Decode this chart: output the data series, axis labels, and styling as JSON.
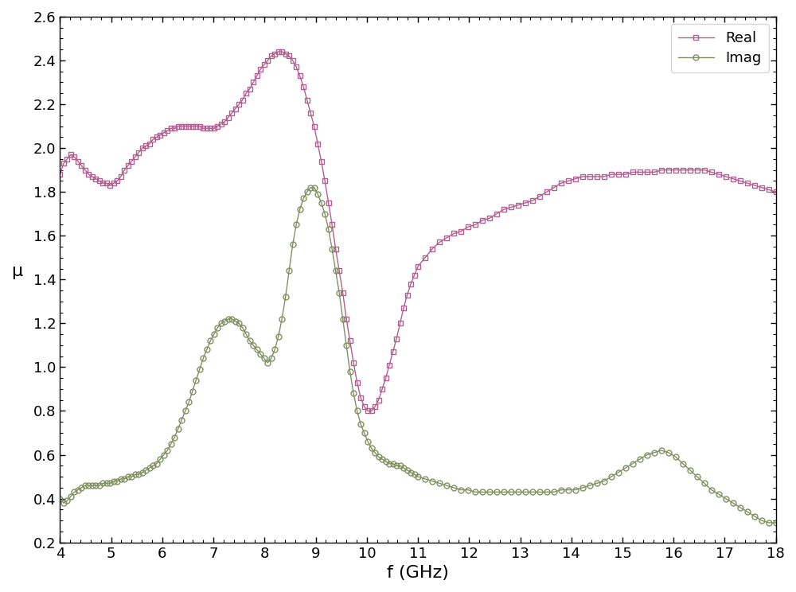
{
  "xlabel": "f (GHz)",
  "ylabel": "μ",
  "xlim": [
    4,
    18
  ],
  "ylim": [
    0.2,
    2.6
  ],
  "xticks": [
    4,
    5,
    6,
    7,
    8,
    9,
    10,
    11,
    12,
    13,
    14,
    15,
    16,
    17,
    18
  ],
  "yticks": [
    0.2,
    0.4,
    0.6,
    0.8,
    1.0,
    1.2,
    1.4,
    1.6,
    1.8,
    2.0,
    2.2,
    2.4,
    2.6
  ],
  "real_color": "#b06090",
  "imag_color": "#809060",
  "legend_labels": [
    "Real",
    "Imag"
  ],
  "marker_real": "s",
  "marker_imag": "o",
  "linewidth": 1.0,
  "markersize": 5,
  "xlabel_fontsize": 16,
  "ylabel_fontsize": 16,
  "tick_fontsize": 13,
  "legend_fontsize": 13,
  "real_x": [
    4.0,
    4.07,
    4.14,
    4.21,
    4.28,
    4.35,
    4.42,
    4.49,
    4.56,
    4.63,
    4.7,
    4.77,
    4.84,
    4.91,
    4.98,
    5.05,
    5.12,
    5.19,
    5.26,
    5.33,
    5.4,
    5.47,
    5.54,
    5.61,
    5.68,
    5.75,
    5.82,
    5.89,
    5.96,
    6.03,
    6.1,
    6.17,
    6.24,
    6.31,
    6.38,
    6.45,
    6.52,
    6.59,
    6.66,
    6.73,
    6.8,
    6.87,
    6.94,
    7.01,
    7.08,
    7.15,
    7.22,
    7.29,
    7.36,
    7.43,
    7.5,
    7.57,
    7.64,
    7.71,
    7.78,
    7.85,
    7.92,
    7.99,
    8.06,
    8.13,
    8.2,
    8.27,
    8.34,
    8.41,
    8.48,
    8.55,
    8.62,
    8.69,
    8.76,
    8.83,
    8.9,
    8.97,
    9.04,
    9.11,
    9.18,
    9.25,
    9.32,
    9.39,
    9.46,
    9.53,
    9.6,
    9.67,
    9.74,
    9.81,
    9.88,
    9.95,
    10.02,
    10.09,
    10.16,
    10.23,
    10.3,
    10.37,
    10.44,
    10.51,
    10.58,
    10.65,
    10.72,
    10.79,
    10.86,
    10.93,
    11.0,
    11.14,
    11.28,
    11.42,
    11.56,
    11.7,
    11.84,
    11.98,
    12.12,
    12.26,
    12.4,
    12.54,
    12.68,
    12.82,
    12.96,
    13.1,
    13.24,
    13.38,
    13.52,
    13.66,
    13.8,
    13.94,
    14.08,
    14.22,
    14.36,
    14.5,
    14.64,
    14.78,
    14.92,
    15.06,
    15.2,
    15.34,
    15.48,
    15.62,
    15.76,
    15.9,
    16.04,
    16.18,
    16.32,
    16.46,
    16.6,
    16.74,
    16.88,
    17.02,
    17.16,
    17.3,
    17.44,
    17.58,
    17.72,
    17.86,
    18.0
  ],
  "real_y": [
    1.88,
    1.93,
    1.95,
    1.97,
    1.96,
    1.94,
    1.92,
    1.9,
    1.88,
    1.87,
    1.86,
    1.85,
    1.84,
    1.84,
    1.83,
    1.84,
    1.85,
    1.87,
    1.9,
    1.92,
    1.94,
    1.96,
    1.98,
    2.0,
    2.01,
    2.02,
    2.04,
    2.05,
    2.06,
    2.07,
    2.08,
    2.09,
    2.09,
    2.1,
    2.1,
    2.1,
    2.1,
    2.1,
    2.1,
    2.1,
    2.09,
    2.09,
    2.09,
    2.09,
    2.1,
    2.11,
    2.12,
    2.14,
    2.16,
    2.18,
    2.2,
    2.22,
    2.25,
    2.27,
    2.3,
    2.33,
    2.36,
    2.38,
    2.4,
    2.42,
    2.43,
    2.44,
    2.44,
    2.43,
    2.42,
    2.4,
    2.37,
    2.33,
    2.28,
    2.22,
    2.16,
    2.1,
    2.02,
    1.94,
    1.85,
    1.75,
    1.65,
    1.54,
    1.44,
    1.34,
    1.22,
    1.12,
    1.02,
    0.93,
    0.86,
    0.82,
    0.8,
    0.8,
    0.82,
    0.85,
    0.9,
    0.95,
    1.01,
    1.07,
    1.13,
    1.2,
    1.27,
    1.33,
    1.38,
    1.42,
    1.46,
    1.5,
    1.54,
    1.57,
    1.59,
    1.61,
    1.62,
    1.64,
    1.65,
    1.67,
    1.68,
    1.7,
    1.72,
    1.73,
    1.74,
    1.75,
    1.76,
    1.78,
    1.8,
    1.82,
    1.84,
    1.85,
    1.86,
    1.87,
    1.87,
    1.87,
    1.87,
    1.88,
    1.88,
    1.88,
    1.89,
    1.89,
    1.89,
    1.89,
    1.9,
    1.9,
    1.9,
    1.9,
    1.9,
    1.9,
    1.9,
    1.89,
    1.88,
    1.87,
    1.86,
    1.85,
    1.84,
    1.83,
    1.82,
    1.81,
    1.8
  ],
  "imag_x": [
    4.0,
    4.07,
    4.14,
    4.21,
    4.28,
    4.35,
    4.42,
    4.49,
    4.56,
    4.63,
    4.7,
    4.77,
    4.84,
    4.91,
    4.98,
    5.05,
    5.12,
    5.19,
    5.26,
    5.33,
    5.4,
    5.47,
    5.54,
    5.61,
    5.68,
    5.75,
    5.82,
    5.89,
    5.96,
    6.03,
    6.1,
    6.17,
    6.24,
    6.31,
    6.38,
    6.45,
    6.52,
    6.59,
    6.66,
    6.73,
    6.8,
    6.87,
    6.94,
    7.01,
    7.08,
    7.15,
    7.22,
    7.29,
    7.36,
    7.43,
    7.5,
    7.57,
    7.64,
    7.71,
    7.78,
    7.85,
    7.92,
    7.99,
    8.06,
    8.13,
    8.2,
    8.27,
    8.34,
    8.41,
    8.48,
    8.55,
    8.62,
    8.69,
    8.76,
    8.83,
    8.9,
    8.97,
    9.04,
    9.11,
    9.18,
    9.25,
    9.32,
    9.39,
    9.46,
    9.53,
    9.6,
    9.67,
    9.74,
    9.81,
    9.88,
    9.95,
    10.02,
    10.09,
    10.16,
    10.23,
    10.3,
    10.37,
    10.44,
    10.51,
    10.58,
    10.65,
    10.72,
    10.79,
    10.86,
    10.93,
    11.0,
    11.14,
    11.28,
    11.42,
    11.56,
    11.7,
    11.84,
    11.98,
    12.12,
    12.26,
    12.4,
    12.54,
    12.68,
    12.82,
    12.96,
    13.1,
    13.24,
    13.38,
    13.52,
    13.66,
    13.8,
    13.94,
    14.08,
    14.22,
    14.36,
    14.5,
    14.64,
    14.78,
    14.92,
    15.06,
    15.2,
    15.34,
    15.48,
    15.62,
    15.76,
    15.9,
    16.04,
    16.18,
    16.32,
    16.46,
    16.6,
    16.74,
    16.88,
    17.02,
    17.16,
    17.3,
    17.44,
    17.58,
    17.72,
    17.86,
    18.0
  ],
  "imag_y": [
    0.4,
    0.38,
    0.39,
    0.41,
    0.43,
    0.44,
    0.45,
    0.46,
    0.46,
    0.46,
    0.46,
    0.46,
    0.47,
    0.47,
    0.47,
    0.48,
    0.48,
    0.49,
    0.49,
    0.5,
    0.5,
    0.51,
    0.51,
    0.52,
    0.53,
    0.54,
    0.55,
    0.56,
    0.58,
    0.6,
    0.62,
    0.65,
    0.68,
    0.72,
    0.76,
    0.8,
    0.84,
    0.89,
    0.94,
    0.99,
    1.04,
    1.08,
    1.12,
    1.15,
    1.18,
    1.2,
    1.21,
    1.22,
    1.22,
    1.21,
    1.2,
    1.18,
    1.15,
    1.12,
    1.1,
    1.08,
    1.06,
    1.04,
    1.02,
    1.04,
    1.08,
    1.14,
    1.22,
    1.32,
    1.44,
    1.56,
    1.65,
    1.72,
    1.77,
    1.8,
    1.82,
    1.82,
    1.79,
    1.75,
    1.7,
    1.63,
    1.54,
    1.44,
    1.34,
    1.22,
    1.1,
    0.98,
    0.88,
    0.8,
    0.74,
    0.7,
    0.66,
    0.63,
    0.61,
    0.59,
    0.58,
    0.57,
    0.56,
    0.56,
    0.55,
    0.55,
    0.54,
    0.53,
    0.52,
    0.51,
    0.5,
    0.49,
    0.48,
    0.47,
    0.46,
    0.45,
    0.44,
    0.44,
    0.43,
    0.43,
    0.43,
    0.43,
    0.43,
    0.43,
    0.43,
    0.43,
    0.43,
    0.43,
    0.43,
    0.43,
    0.44,
    0.44,
    0.44,
    0.45,
    0.46,
    0.47,
    0.48,
    0.5,
    0.52,
    0.54,
    0.56,
    0.58,
    0.6,
    0.61,
    0.62,
    0.61,
    0.59,
    0.56,
    0.53,
    0.5,
    0.47,
    0.44,
    0.42,
    0.4,
    0.38,
    0.36,
    0.34,
    0.32,
    0.3,
    0.29,
    0.29
  ]
}
